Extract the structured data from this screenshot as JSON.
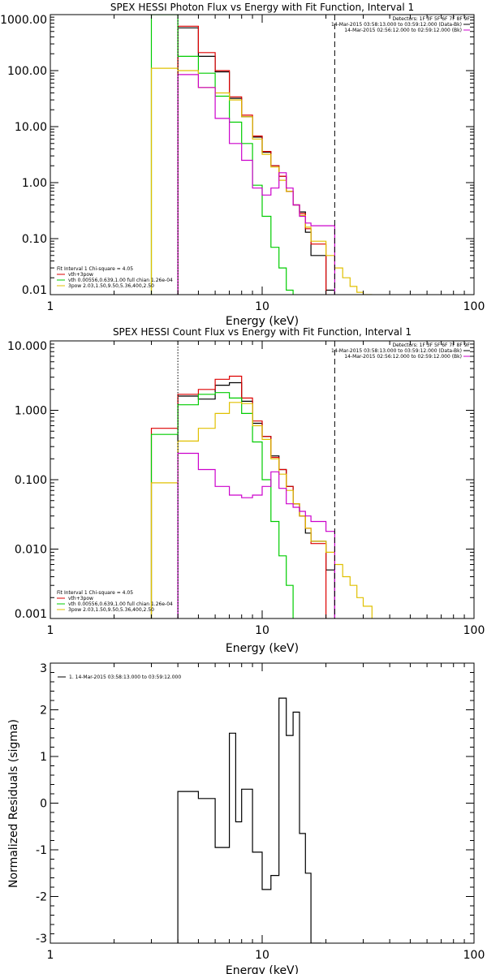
{
  "chart_data": [
    {
      "type": "line",
      "title": "SPEX HESSI Photon Flux vs Energy with Fit Function, Interval 1",
      "xlabel": "Energy (keV)",
      "ylabel": "",
      "xscale": "log",
      "yscale": "log",
      "xlim": [
        1,
        100
      ],
      "ylim": [
        0.01,
        1000
      ],
      "x_ticks": [
        "1",
        "10",
        "100"
      ],
      "y_ticks": [
        "0.01",
        "0.10",
        "1.00",
        "10.00",
        "100.00",
        "1000.00"
      ],
      "legend_top": [
        {
          "text": "Detectors: 1F 3F 5F 6F 7F 8F 9F",
          "color": "#000000",
          "line": false
        },
        {
          "text": "14-Mar-2015 03:58:13.000 to 03:59:12.000 (Data-Bk)",
          "color": "#000000",
          "line": true
        },
        {
          "text": "14-Mar-2015 02:56:12.000 to 02:59:12.000 (Bk)",
          "color": "#cc00cc",
          "line": true
        }
      ],
      "legend_bottom": [
        {
          "text": "Fit Interval 1   Chi-square = 4.05",
          "color": "#000000",
          "line": false
        },
        {
          "text": "vth+3pow",
          "color": "#dd0000",
          "line": true
        },
        {
          "text": "vth 0.00556,0.639,1.00   full chian 1.26e-04",
          "color": "#00cc00",
          "line": true
        },
        {
          "text": "3pow 2.03,1.50,9.50,5.36,400,2.50",
          "color": "#e0c000",
          "line": true
        }
      ],
      "vlines": [
        {
          "x": 4.0,
          "style": "dotted",
          "color": "#000000"
        },
        {
          "x": 22.0,
          "style": "dashed",
          "color": "#000000"
        }
      ],
      "series": [
        {
          "color": "#000000",
          "edges": [
            4.0,
            5.0,
            6.0,
            7.0,
            8.0,
            9.0,
            10.0,
            11.0,
            12.0,
            13.0,
            14.0,
            15.0,
            16.0,
            17.0,
            20.0,
            22.0
          ],
          "values": [
            580,
            180,
            95,
            32,
            15,
            6.5,
            3.5,
            2.0,
            1.3,
            0.7,
            0.4,
            0.3,
            0.13,
            0.05,
            0.012
          ]
        },
        {
          "color": "#dd0000",
          "edges": [
            4.0,
            5.0,
            6.0,
            7.0,
            8.0,
            9.0,
            10.0,
            11.0,
            12.0,
            13.0,
            14.0,
            15.0,
            16.0,
            17.0,
            20.0
          ],
          "values": [
            620,
            210,
            100,
            34,
            16,
            6.8,
            3.6,
            2.0,
            1.3,
            0.7,
            0.4,
            0.28,
            0.15,
            0.08
          ]
        },
        {
          "color": "#00cc00",
          "edges": [
            3.0,
            4.0,
            5.0,
            6.0,
            7.0,
            8.0,
            9.0,
            10.0,
            11.0,
            12.0,
            13.0,
            14.0
          ],
          "values": [
            1000,
            180,
            90,
            35,
            12,
            5.0,
            0.9,
            0.25,
            0.07,
            0.03,
            0.012
          ]
        },
        {
          "color": "#e0c000",
          "edges": [
            3.0,
            4.0,
            5.0,
            6.0,
            7.0,
            8.0,
            9.0,
            10.0,
            11.0,
            12.0,
            13.0,
            14.0,
            15.0,
            16.0,
            17.0,
            20.0,
            22.0,
            24.0,
            26.0,
            28.0,
            30.0,
            33.0
          ],
          "values": [
            110,
            100,
            50,
            40,
            30,
            15,
            6.0,
            3.2,
            1.9,
            1.1,
            0.7,
            0.4,
            0.26,
            0.16,
            0.09,
            0.05,
            0.03,
            0.02,
            0.014,
            0.011,
            0.01
          ]
        },
        {
          "color": "#cc00cc",
          "edges": [
            4.0,
            5.0,
            6.0,
            7.0,
            8.0,
            9.0,
            10.0,
            11.0,
            12.0,
            13.0,
            14.0,
            15.0,
            16.0,
            17.0,
            20.0,
            22.0
          ],
          "values": [
            85,
            50,
            14,
            5.0,
            2.5,
            0.8,
            0.6,
            0.8,
            1.5,
            0.8,
            0.4,
            0.25,
            0.19,
            0.17,
            0.17
          ]
        }
      ]
    },
    {
      "type": "line",
      "title": "SPEX HESSI Count Flux vs Energy with Fit Function, Interval 1",
      "xlabel": "Energy (keV)",
      "ylabel": "",
      "xscale": "log",
      "yscale": "log",
      "xlim": [
        1,
        100
      ],
      "ylim": [
        0.001,
        10
      ],
      "x_ticks": [
        "1",
        "10",
        "100"
      ],
      "y_ticks": [
        "0.001",
        "0.010",
        "0.100",
        "1.000",
        "10.000"
      ],
      "legend_top": [
        {
          "text": "Detectors: 1F 3F 5F 6F 7F 8F 9F",
          "color": "#000000",
          "line": false
        },
        {
          "text": "14-Mar-2015 03:58:13.000 to 03:59:12.000 (Data-Bk)",
          "color": "#000000",
          "line": true
        },
        {
          "text": "14-Mar-2015 02:56:12.000 to 02:59:12.000 (Bk)",
          "color": "#cc00cc",
          "line": true
        }
      ],
      "legend_bottom": [
        {
          "text": "Fit Interval 1   Chi-square = 4.05",
          "color": "#000000",
          "line": false
        },
        {
          "text": "vth+3pow",
          "color": "#dd0000",
          "line": true
        },
        {
          "text": "vth 0.00556,0.639,1.00   full chian 1.26e-04",
          "color": "#00cc00",
          "line": true
        },
        {
          "text": "3pow 2.03,1.50,9.50,5.36,400,2.50",
          "color": "#e0c000",
          "line": true
        }
      ],
      "vlines": [
        {
          "x": 4.0,
          "style": "dotted",
          "color": "#000000"
        },
        {
          "x": 22.0,
          "style": "dashed",
          "color": "#000000"
        }
      ],
      "series": [
        {
          "color": "#000000",
          "edges": [
            4.0,
            5.0,
            6.0,
            7.0,
            8.0,
            9.0,
            10.0,
            11.0,
            12.0,
            13.0,
            14.0,
            15.0,
            16.0,
            17.0,
            20.0,
            22.0
          ],
          "values": [
            1.6,
            1.45,
            2.3,
            2.5,
            1.35,
            0.65,
            0.42,
            0.22,
            0.14,
            0.08,
            0.045,
            0.03,
            0.017,
            0.013,
            0.005
          ]
        },
        {
          "color": "#dd0000",
          "edges": [
            3.0,
            4.0,
            5.0,
            6.0,
            7.0,
            8.0,
            9.0,
            10.0,
            11.0,
            12.0,
            13.0,
            14.0,
            15.0,
            16.0,
            17.0,
            20.0
          ],
          "values": [
            0.55,
            1.7,
            2.0,
            2.8,
            3.1,
            1.5,
            0.7,
            0.42,
            0.21,
            0.14,
            0.08,
            0.045,
            0.03,
            0.02,
            0.012
          ]
        },
        {
          "color": "#00cc00",
          "edges": [
            3.0,
            4.0,
            5.0,
            6.0,
            7.0,
            8.0,
            9.0,
            10.0,
            11.0,
            12.0,
            13.0,
            14.0
          ],
          "values": [
            0.45,
            1.2,
            1.7,
            1.8,
            1.5,
            0.9,
            0.35,
            0.1,
            0.025,
            0.008,
            0.003
          ]
        },
        {
          "color": "#e0c000",
          "edges": [
            3.0,
            4.0,
            5.0,
            6.0,
            7.0,
            8.0,
            9.0,
            10.0,
            11.0,
            12.0,
            13.0,
            14.0,
            15.0,
            16.0,
            17.0,
            20.0,
            22.0,
            24.0,
            26.0,
            28.0,
            30.0,
            33.0
          ],
          "values": [
            0.09,
            0.36,
            0.55,
            0.9,
            1.3,
            1.25,
            0.6,
            0.38,
            0.2,
            0.12,
            0.07,
            0.045,
            0.03,
            0.02,
            0.013,
            0.009,
            0.006,
            0.004,
            0.003,
            0.002,
            0.0015
          ]
        },
        {
          "color": "#cc00cc",
          "edges": [
            4.0,
            5.0,
            6.0,
            7.0,
            8.0,
            9.0,
            10.0,
            11.0,
            12.0,
            13.0,
            14.0,
            15.0,
            16.0,
            17.0,
            20.0,
            22.0
          ],
          "values": [
            0.24,
            0.14,
            0.08,
            0.06,
            0.055,
            0.06,
            0.08,
            0.13,
            0.075,
            0.045,
            0.04,
            0.035,
            0.03,
            0.025,
            0.018
          ]
        }
      ]
    },
    {
      "type": "line",
      "title": "",
      "xlabel": "Energy (keV)",
      "ylabel": "Normalized Residuals (sigma)",
      "xscale": "log",
      "yscale": "linear",
      "xlim": [
        1,
        100
      ],
      "ylim": [
        -3,
        3
      ],
      "x_ticks": [
        "1",
        "10",
        "100"
      ],
      "y_ticks": [
        "-3",
        "-2",
        "-1",
        "0",
        "1",
        "2",
        "3"
      ],
      "legend_top": [
        {
          "text": "1. 14-Mar-2015 03:58:13.000 to 03:59:12.000",
          "color": "#000000",
          "line": true
        }
      ],
      "series": [
        {
          "color": "#000000",
          "edges": [
            4.0,
            5.0,
            6.0,
            7.0,
            7.5,
            8.0,
            9.0,
            10.0,
            11.0,
            12.0,
            13.0,
            14.0,
            15.0,
            16.0,
            17.0,
            18.0,
            19.0
          ],
          "values": [
            0.25,
            0.1,
            -0.95,
            1.5,
            -0.4,
            0.3,
            -1.05,
            -1.85,
            -1.55,
            2.25,
            1.45,
            1.95,
            -0.65,
            -1.5,
            -3.0,
            -3.0
          ]
        }
      ]
    }
  ]
}
